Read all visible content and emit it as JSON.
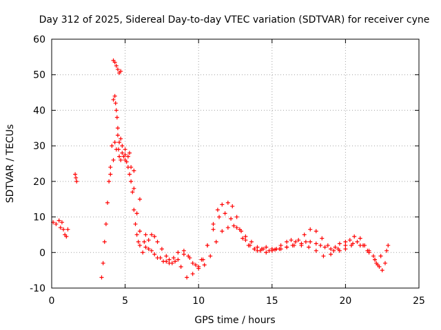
{
  "chart_data": {
    "type": "scatter",
    "title": "Day 312 of 2025, Sidereal Day-to-day VTEC variation (SDTVAR) for receiver cyne",
    "xlabel": "GPS time / hours",
    "ylabel": "SDTVAR / TECUs",
    "xlim": [
      0,
      25
    ],
    "ylim": [
      -10,
      60
    ],
    "xticks": [
      0,
      5,
      10,
      15,
      20,
      25
    ],
    "yticks": [
      -10,
      0,
      10,
      20,
      30,
      40,
      50,
      60
    ],
    "xtick_labels": [
      "0",
      "5",
      "10",
      "15",
      "20",
      "25"
    ],
    "ytick_labels": [
      "-10",
      "0",
      "10",
      "20",
      "30",
      "40",
      "50",
      "60"
    ],
    "grid": true,
    "legend": "none",
    "marker": "+",
    "colors": {
      "series": "#ff0000",
      "axes": "#000000",
      "grid": "#a0a0a0"
    },
    "series": [
      {
        "name": "SDTVAR",
        "x": [
          0.1,
          0.3,
          0.5,
          0.6,
          0.7,
          0.8,
          0.9,
          1.0,
          1.1,
          1.6,
          1.65,
          1.7,
          3.4,
          3.5,
          3.6,
          3.7,
          3.8,
          3.9,
          4.0,
          4.1,
          4.2,
          4.3,
          4.35,
          4.4,
          4.45,
          4.5,
          4.55,
          4.6,
          4.7,
          4.8,
          4.9,
          5.0,
          5.1,
          5.2,
          5.3,
          5.4,
          5.5,
          5.6,
          5.7,
          5.8,
          5.9,
          6.0,
          6.2,
          6.4,
          6.6,
          6.8,
          7.0,
          7.2,
          7.5,
          7.8,
          8.0,
          8.3,
          8.6,
          9.0,
          9.3,
          9.6,
          10.0,
          10.3,
          10.6,
          11.0,
          11.3,
          11.6,
          12.0,
          12.3,
          12.6,
          12.9,
          13.2,
          13.5,
          13.8,
          14.0,
          14.3,
          14.6,
          15.0,
          15.3,
          15.6,
          16.0,
          16.3,
          16.6,
          17.0,
          17.3,
          17.6,
          18.0,
          18.3,
          18.6,
          19.0,
          19.3,
          19.6,
          20.0,
          20.3,
          20.6,
          21.0,
          21.3,
          21.6,
          21.9,
          22.1,
          22.3,
          22.5,
          22.7,
          22.9,
          4.0,
          4.2,
          4.4,
          4.6,
          4.8,
          5.0,
          5.2,
          5.4,
          5.6,
          5.8,
          6.0,
          6.3,
          6.6,
          7.0,
          7.4,
          7.8,
          8.2,
          8.6,
          9.0,
          9.4,
          9.8,
          10.2,
          10.6,
          11.0,
          11.4,
          11.8,
          12.2,
          12.6,
          13.0,
          13.4,
          13.8,
          14.2,
          14.6,
          15.0,
          15.5,
          16.0,
          16.5,
          17.0,
          17.5,
          18.0,
          18.5,
          19.0,
          19.5,
          20.0,
          20.5,
          21.0,
          21.5,
          22.0,
          22.4,
          22.8,
          4.3,
          4.5,
          4.7,
          5.0,
          5.3,
          5.6,
          6.0,
          6.4,
          6.8,
          7.2,
          7.6,
          8.0,
          8.4,
          8.8,
          9.2,
          9.6,
          10.0,
          10.4,
          10.8,
          11.2,
          11.6,
          12.0,
          12.4,
          12.8,
          13.2,
          13.6,
          14.0,
          14.4,
          14.8,
          15.2,
          15.6,
          16.0,
          16.4,
          16.8,
          17.2,
          17.6,
          18.0,
          18.4,
          18.8,
          19.2,
          19.6,
          20.0,
          20.4,
          20.8,
          21.2,
          21.6,
          22.0,
          22.2,
          22.4,
          4.2,
          4.3,
          4.4,
          4.5,
          4.6,
          4.7
        ],
        "y": [
          8.5,
          8.0,
          9.0,
          7.0,
          8.5,
          6.5,
          5.0,
          4.5,
          6.5,
          22.0,
          21.0,
          20.0,
          -7.0,
          -3.0,
          3.0,
          8.0,
          14.0,
          20.0,
          24.0,
          30.0,
          43.0,
          44.0,
          42.0,
          40.0,
          38.0,
          33.0,
          29.0,
          27.0,
          26.0,
          28.0,
          27.0,
          26.0,
          25.5,
          24.0,
          22.0,
          20.0,
          17.0,
          12.0,
          8.0,
          5.0,
          3.0,
          2.0,
          0.0,
          1.5,
          3.5,
          5.0,
          4.5,
          3.0,
          1.0,
          -1.0,
          -2.0,
          -1.5,
          0.0,
          0.5,
          -1.0,
          -3.0,
          -4.0,
          -2.0,
          2.0,
          8.0,
          12.0,
          13.5,
          14.0,
          13.0,
          10.0,
          6.0,
          3.5,
          2.0,
          1.0,
          0.5,
          1.0,
          1.5,
          1.0,
          1.0,
          2.0,
          3.0,
          3.5,
          3.0,
          2.5,
          3.0,
          3.0,
          2.5,
          2.0,
          1.5,
          1.0,
          1.5,
          2.5,
          3.0,
          3.5,
          4.5,
          4.0,
          2.0,
          0.5,
          -1.0,
          -3.0,
          -4.0,
          -5.0,
          -3.0,
          2.0,
          22.0,
          26.0,
          29.0,
          31.0,
          30.0,
          29.0,
          27.0,
          24.0,
          18.0,
          11.0,
          6.0,
          3.0,
          1.0,
          -0.5,
          -1.5,
          -2.5,
          -3.0,
          -2.0,
          -0.5,
          -1.5,
          -3.5,
          -2.0,
          2.0,
          6.5,
          10.0,
          11.0,
          9.5,
          7.0,
          4.0,
          2.0,
          1.0,
          0.5,
          0.0,
          0.5,
          1.0,
          1.5,
          2.0,
          2.0,
          1.5,
          0.5,
          -1.0,
          -0.5,
          1.0,
          2.0,
          2.5,
          2.0,
          0.5,
          -2.0,
          -1.0,
          0.5,
          31.0,
          35.0,
          32.0,
          27.5,
          28.0,
          23.0,
          15.0,
          5.0,
          0.5,
          -1.5,
          -2.5,
          -3.0,
          -2.5,
          -4.0,
          -7.0,
          -6.0,
          -4.5,
          -3.5,
          -1.0,
          3.0,
          6.0,
          7.0,
          7.5,
          6.5,
          4.5,
          3.0,
          1.5,
          1.0,
          0.5,
          0.8,
          1.0,
          1.5,
          2.0,
          3.5,
          5.0,
          6.5,
          6.0,
          4.0,
          2.0,
          0.5,
          0.5,
          1.0,
          2.0,
          3.0,
          2.0,
          0.0,
          -2.0,
          -3.5,
          -1.0,
          54.0,
          53.5,
          52.5,
          51.5,
          50.5,
          51.0
        ]
      }
    ]
  }
}
